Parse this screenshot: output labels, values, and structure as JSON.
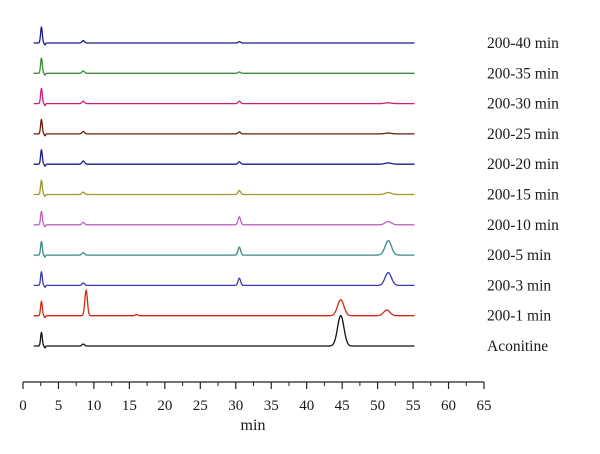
{
  "chart_data": {
    "type": "line",
    "xlabel": "min",
    "xlim": [
      0,
      65
    ],
    "x_ticks": [
      "0",
      "5",
      "10",
      "15",
      "20",
      "25",
      "30",
      "35",
      "40",
      "45",
      "50",
      "55",
      "60",
      "65"
    ],
    "series": [
      {
        "name": "200-40 min",
        "color": "#1a1a8c",
        "peaks": [
          {
            "x": 2.6,
            "h": 1.0
          },
          {
            "x": 8.5,
            "h": 0.15
          },
          {
            "x": 30.5,
            "h": 0.08
          }
        ]
      },
      {
        "name": "200-35 min",
        "color": "#3a8a3a",
        "peaks": [
          {
            "x": 2.6,
            "h": 0.95
          },
          {
            "x": 8.5,
            "h": 0.15
          },
          {
            "x": 30.5,
            "h": 0.08
          }
        ]
      },
      {
        "name": "200-30 min",
        "color": "#d01c7a",
        "peaks": [
          {
            "x": 2.6,
            "h": 0.95
          },
          {
            "x": 8.5,
            "h": 0.15
          },
          {
            "x": 30.5,
            "h": 0.15
          },
          {
            "x": 51.5,
            "h": 0.05
          }
        ]
      },
      {
        "name": "200-25 min",
        "color": "#6b1a0a",
        "peaks": [
          {
            "x": 2.6,
            "h": 0.9
          },
          {
            "x": 8.5,
            "h": 0.15
          },
          {
            "x": 30.5,
            "h": 0.12
          },
          {
            "x": 51.5,
            "h": 0.05
          }
        ]
      },
      {
        "name": "200-20 min",
        "color": "#1a1a8c",
        "peaks": [
          {
            "x": 2.6,
            "h": 0.9
          },
          {
            "x": 8.5,
            "h": 0.2
          },
          {
            "x": 30.5,
            "h": 0.15
          },
          {
            "x": 51.5,
            "h": 0.08
          }
        ]
      },
      {
        "name": "200-15 min",
        "color": "#9a9a2a",
        "peaks": [
          {
            "x": 2.6,
            "h": 0.9
          },
          {
            "x": 8.5,
            "h": 0.15
          },
          {
            "x": 30.5,
            "h": 0.25
          },
          {
            "x": 51.5,
            "h": 0.12
          }
        ]
      },
      {
        "name": "200-10 min",
        "color": "#c060c0",
        "peaks": [
          {
            "x": 2.6,
            "h": 0.85
          },
          {
            "x": 8.5,
            "h": 0.15
          },
          {
            "x": 30.5,
            "h": 0.5
          },
          {
            "x": 51.5,
            "h": 0.2
          }
        ]
      },
      {
        "name": "200-5 min",
        "color": "#3a8a8a",
        "peaks": [
          {
            "x": 2.6,
            "h": 0.85
          },
          {
            "x": 8.5,
            "h": 0.15
          },
          {
            "x": 30.5,
            "h": 0.5
          },
          {
            "x": 51.5,
            "h": 0.9
          }
        ]
      },
      {
        "name": "200-3 min",
        "color": "#3a3aa8",
        "peaks": [
          {
            "x": 2.6,
            "h": 0.85
          },
          {
            "x": 8.5,
            "h": 0.15
          },
          {
            "x": 30.5,
            "h": 0.45
          },
          {
            "x": 51.5,
            "h": 0.8
          }
        ]
      },
      {
        "name": "200-1 min",
        "color": "#d02a10",
        "peaks": [
          {
            "x": 2.6,
            "h": 0.9
          },
          {
            "x": 8.9,
            "h": 1.6
          },
          {
            "x": 16,
            "h": 0.08
          },
          {
            "x": 44.8,
            "h": 1.0
          },
          {
            "x": 51.3,
            "h": 0.35
          }
        ]
      },
      {
        "name": "Aconitine",
        "color": "#111111",
        "peaks": [
          {
            "x": 2.6,
            "h": 0.85
          },
          {
            "x": 8.5,
            "h": 0.12
          },
          {
            "x": 44.8,
            "h": 1.9
          }
        ]
      }
    ]
  }
}
